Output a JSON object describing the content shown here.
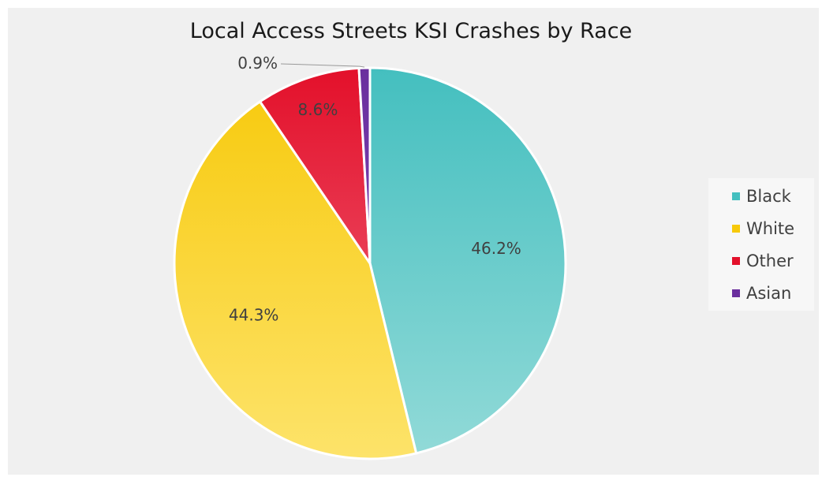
{
  "chart_data": {
    "type": "pie",
    "title": "Local Access Streets KSI Crashes by Race",
    "slices": [
      {
        "name": "Black",
        "value": 46.2,
        "label": "46.2%",
        "color_top": "#44bfbf",
        "color_bottom": "#92dad8"
      },
      {
        "name": "White",
        "value": 44.3,
        "label": "44.3%",
        "color_top": "#f7c90a",
        "color_bottom": "#fde36a"
      },
      {
        "name": "Other",
        "value": 8.6,
        "label": "8.6%",
        "color_top": "#e3102a",
        "color_bottom": "#f06a80"
      },
      {
        "name": "Asian",
        "value": 0.9,
        "label": "0.9%",
        "color_top": "#6a2f9e",
        "color_bottom": "#8a52c0"
      }
    ],
    "start_angle": "12 o'clock",
    "direction": "clockwise",
    "legend_position": "right"
  }
}
